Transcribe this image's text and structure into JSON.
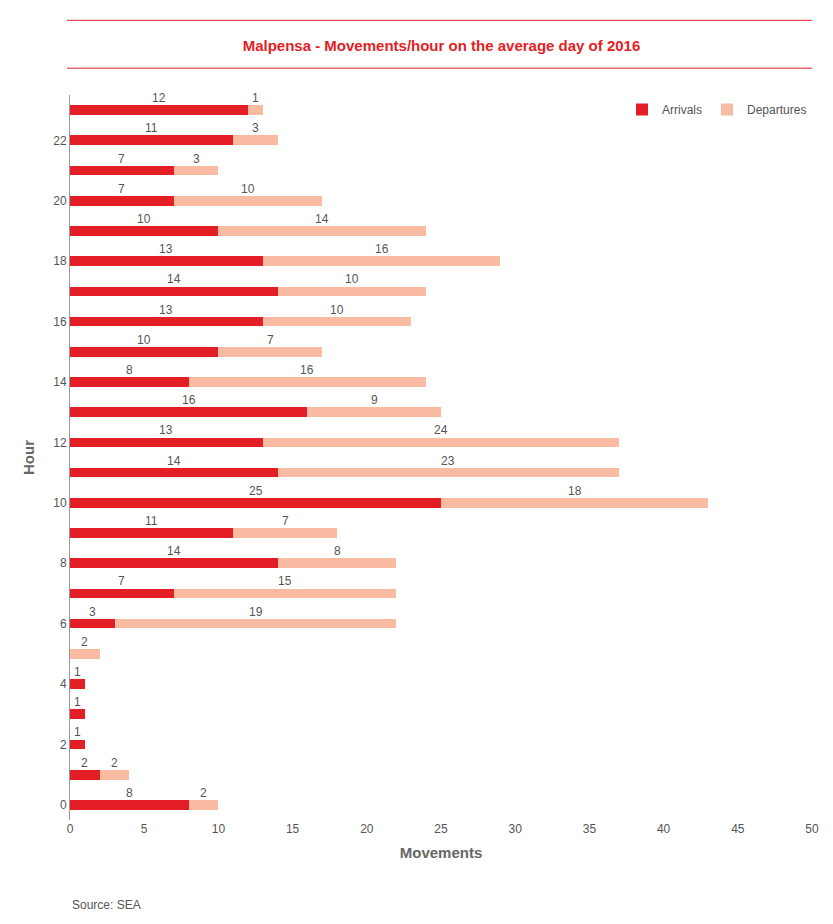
{
  "chart_data": {
    "type": "bar",
    "orientation": "horizontal",
    "stacked": true,
    "data_labels": true,
    "title": "Malpensa - Movements/hour on the average day of 2016",
    "x_label": "Movements",
    "y_label": "Hour",
    "source": "Source: SEA",
    "categories": [
      0,
      1,
      2,
      3,
      4,
      5,
      6,
      7,
      8,
      9,
      10,
      11,
      12,
      13,
      14,
      15,
      16,
      17,
      18,
      19,
      20,
      21,
      22,
      23
    ],
    "series": [
      {
        "name": "Arrivals",
        "color": "#e31e24",
        "values": [
          8,
          2,
          1,
          1,
          1,
          null,
          3,
          7,
          14,
          11,
          25,
          14,
          13,
          16,
          8,
          10,
          13,
          14,
          13,
          10,
          7,
          7,
          11,
          12
        ]
      },
      {
        "name": "Departures",
        "color": "#f9bca3",
        "values": [
          2,
          2,
          null,
          null,
          null,
          2,
          19,
          15,
          8,
          7,
          18,
          23,
          24,
          9,
          16,
          7,
          10,
          10,
          16,
          14,
          10,
          3,
          3,
          1
        ]
      }
    ],
    "xlim": [
      0,
      50
    ],
    "xticks": [
      0,
      5,
      10,
      15,
      20,
      25,
      30,
      35,
      40,
      45,
      50
    ],
    "ylim": [
      -0.5,
      23.5
    ],
    "yticks": [
      0,
      2,
      4,
      6,
      8,
      10,
      12,
      14,
      16,
      18,
      20,
      22
    ],
    "grid": false,
    "legend": "upper right"
  }
}
